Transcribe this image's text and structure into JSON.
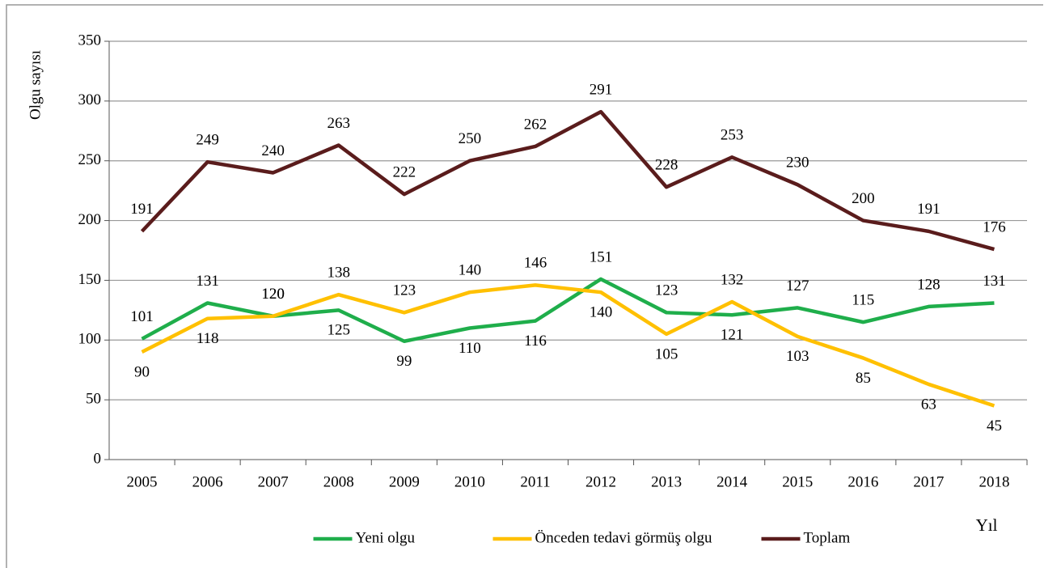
{
  "chart_data": {
    "type": "line",
    "x_label": "Yıl",
    "y_label": "Olgu sayısı",
    "categories": [
      "2005",
      "2006",
      "2007",
      "2008",
      "2009",
      "2010",
      "2011",
      "2012",
      "2013",
      "2014",
      "2015",
      "2016",
      "2017",
      "2018"
    ],
    "series": [
      {
        "name": "Yeni olgu",
        "color": "#1fae4b",
        "values": [
          101,
          131,
          120,
          125,
          99,
          110,
          116,
          151,
          123,
          121,
          127,
          115,
          128,
          131
        ]
      },
      {
        "name": "Önceden tedavi görmüş olgu",
        "color": "#ffc000",
        "values": [
          90,
          118,
          120,
          138,
          123,
          140,
          146,
          140,
          105,
          132,
          103,
          85,
          63,
          45
        ]
      },
      {
        "name": "Toplam",
        "color": "#5a1c1c",
        "values": [
          191,
          249,
          240,
          263,
          222,
          250,
          262,
          291,
          228,
          253,
          230,
          200,
          191,
          176
        ]
      }
    ],
    "ylim": [
      0,
      350
    ],
    "yticks": [
      0,
      50,
      100,
      150,
      200,
      250,
      300,
      350
    ],
    "grid": true,
    "legend": "bottom"
  }
}
